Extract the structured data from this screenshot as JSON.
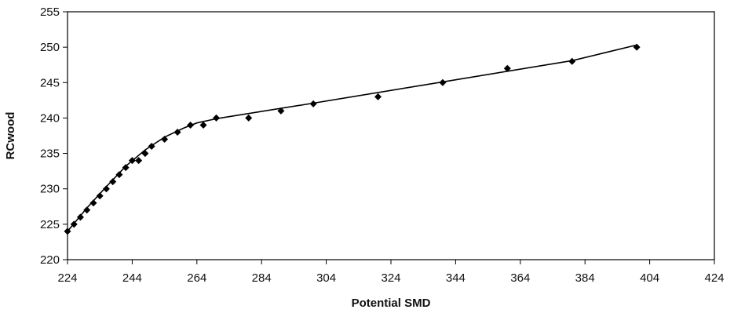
{
  "chart_data": {
    "type": "scatter",
    "title": "",
    "xlabel": "Potential SMD",
    "ylabel": "RCwood",
    "xlim": [
      224,
      424
    ],
    "ylim": [
      220,
      255
    ],
    "x_ticks": [
      "224",
      "244",
      "264",
      "284",
      "304",
      "324",
      "344",
      "364",
      "384",
      "404",
      "424"
    ],
    "y_ticks": [
      "220",
      "225",
      "230",
      "235",
      "240",
      "245",
      "250",
      "255"
    ],
    "grid": false,
    "legend": "none",
    "series": [
      {
        "points": [
          [
            224,
            224
          ],
          [
            226,
            225
          ],
          [
            228,
            226
          ],
          [
            230,
            227
          ],
          [
            232,
            228
          ],
          [
            234,
            229
          ],
          [
            236,
            230
          ],
          [
            238,
            231
          ],
          [
            240,
            232
          ],
          [
            242,
            233
          ],
          [
            244,
            234
          ],
          [
            246,
            234
          ],
          [
            248,
            235
          ],
          [
            250,
            236
          ],
          [
            254,
            237
          ],
          [
            258,
            238
          ],
          [
            262,
            239
          ],
          [
            266,
            239
          ],
          [
            270,
            240
          ],
          [
            280,
            240
          ],
          [
            290,
            241
          ],
          [
            300,
            242
          ],
          [
            320,
            243
          ],
          [
            340,
            245
          ],
          [
            360,
            247
          ],
          [
            380,
            248
          ],
          [
            400,
            250
          ]
        ],
        "marker": "diamond",
        "color": "#000000"
      }
    ],
    "fit_line": {
      "points": [
        [
          224,
          224
        ],
        [
          230,
          227.3
        ],
        [
          236,
          230.3
        ],
        [
          242,
          233.2
        ],
        [
          248,
          235.5
        ],
        [
          254,
          237.3
        ],
        [
          260,
          238.6
        ],
        [
          264,
          239.3
        ],
        [
          268,
          239.7
        ],
        [
          270,
          239.9
        ],
        [
          300,
          242.1
        ],
        [
          340,
          245.1
        ],
        [
          380,
          248.1
        ],
        [
          400,
          250.3
        ]
      ],
      "color": "#000000"
    }
  }
}
